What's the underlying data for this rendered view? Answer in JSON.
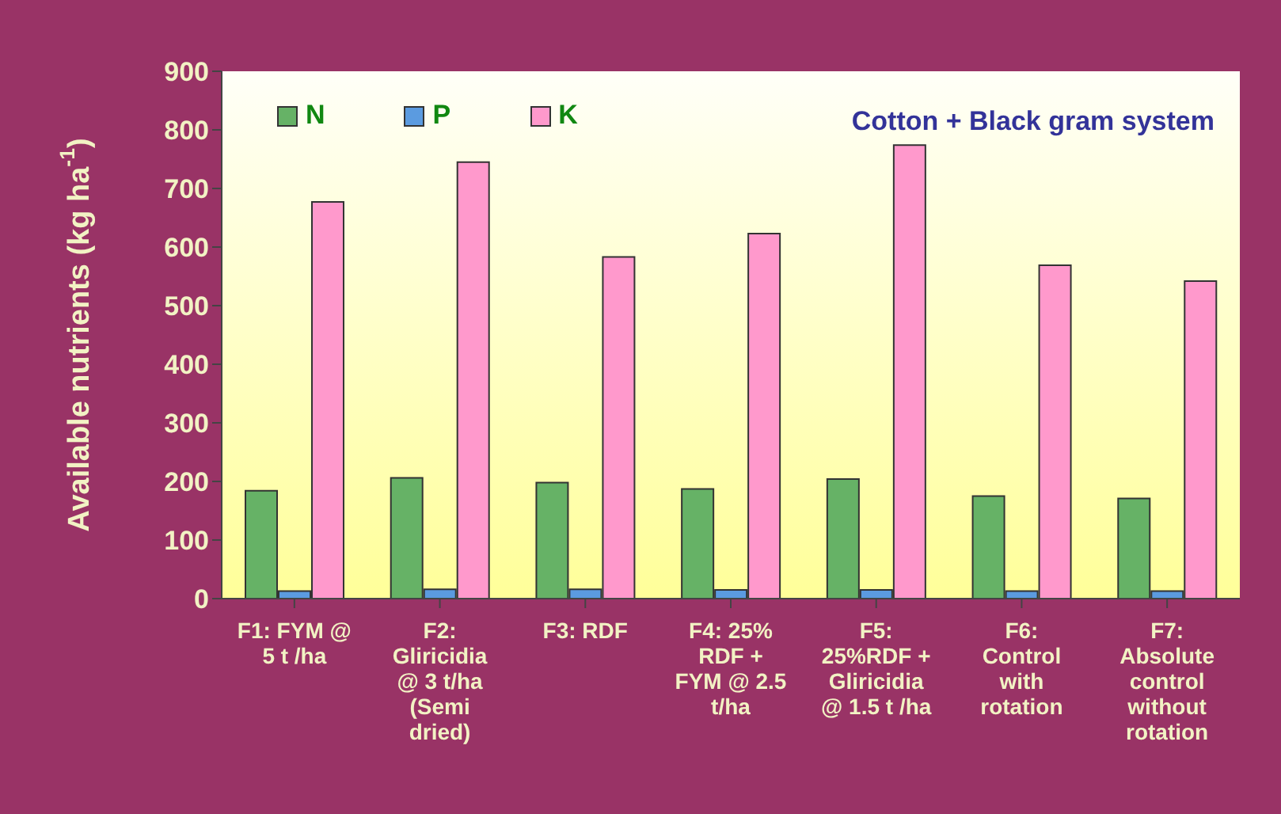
{
  "chart_data": {
    "type": "bar",
    "ylabel": "Available nutrients (kg ha$^{-1}$)",
    "annotations": [
      "Cotton + Black gram system"
    ],
    "categories": [
      "F1: FYM @ 5 t /ha",
      "F2: Gliricidia @ 3 t/ha (Semi dried)",
      "F3: RDF",
      "F4: 25% RDF + FYM @ 2.5 t/ha",
      "F5: 25%RDF + Gliricidia @ 1.5 t /ha",
      "F6: Control with rotation",
      "F7: Absolute control without rotation"
    ],
    "series": [
      {
        "name": "N",
        "color": "#66b266",
        "values": [
          184,
          206,
          198,
          187,
          204,
          175,
          171
        ]
      },
      {
        "name": "P",
        "color": "#5b9be0",
        "values": [
          13,
          16,
          16,
          15,
          15,
          13,
          13
        ]
      },
      {
        "name": "K",
        "color": "#ff99cc",
        "values": [
          677,
          745,
          583,
          623,
          774,
          569,
          542
        ]
      }
    ],
    "ylim": [
      0,
      900
    ],
    "yticks": [
      0,
      100,
      200,
      300,
      400,
      500,
      600,
      700,
      800,
      900
    ],
    "grid": false,
    "legend": "top left"
  }
}
